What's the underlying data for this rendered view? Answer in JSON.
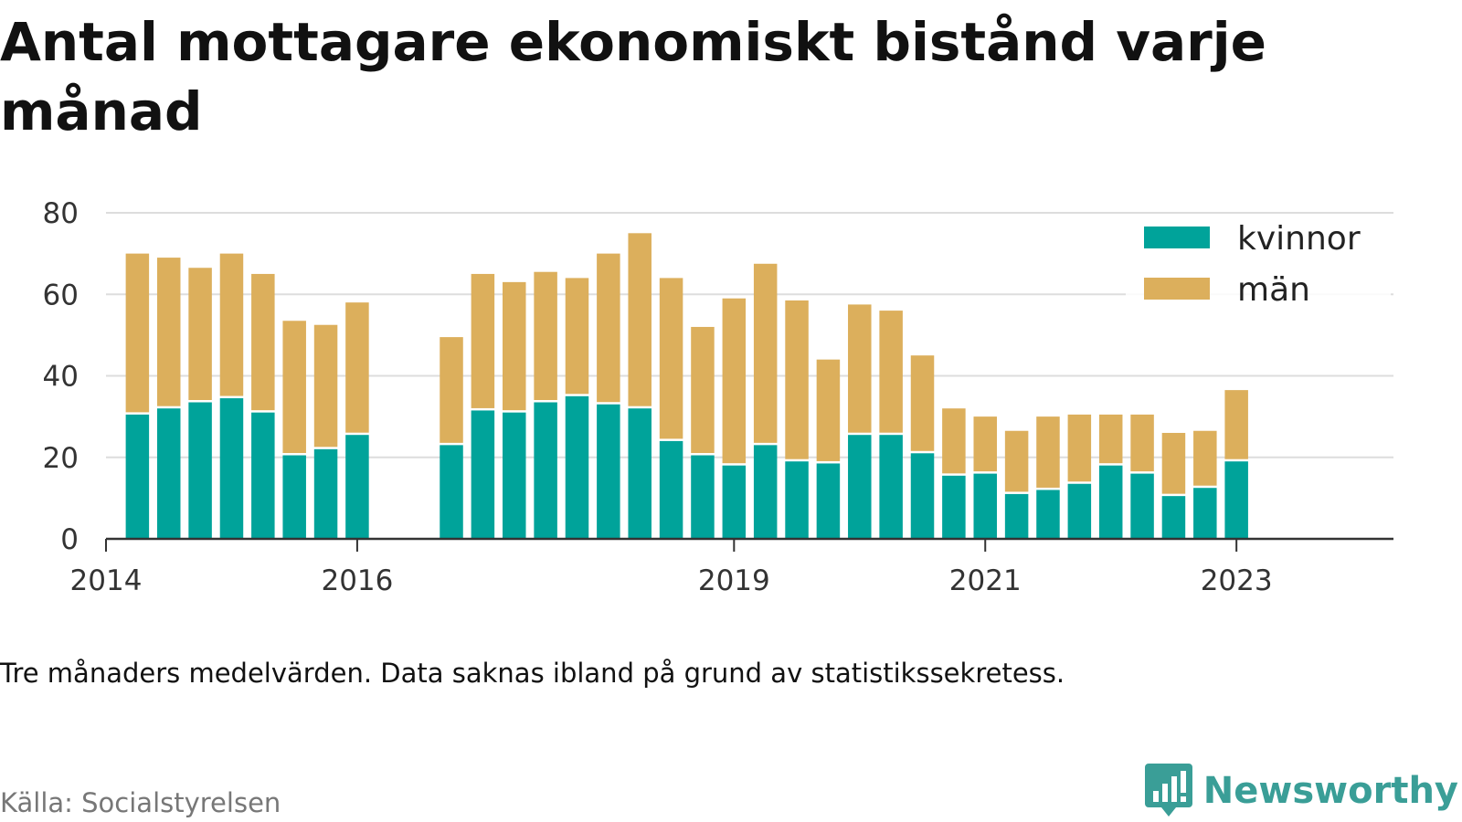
{
  "title": "Antal mottagare ekonomiskt bistånd varje månad",
  "note": "Tre månaders medelvärden. Data saknas ibland på grund av statistikssekretess.",
  "source": "Källa: Socialstyrelsen",
  "brand": {
    "name": "Newsworthy",
    "color": "#3a9e97"
  },
  "chart_data": {
    "type": "bar",
    "stacked": true,
    "ylim": [
      0,
      80
    ],
    "yticks": [
      0,
      20,
      40,
      60,
      80
    ],
    "xlim": [
      2014,
      2024.25
    ],
    "xticks": [
      2014,
      2016,
      2019,
      2021,
      2023
    ],
    "grid": true,
    "legend_position": "top-right",
    "x": [
      2014.25,
      2014.5,
      2014.75,
      2015.0,
      2015.25,
      2015.5,
      2015.75,
      2016.0,
      2016.75,
      2017.0,
      2017.25,
      2017.5,
      2017.75,
      2018.0,
      2018.25,
      2018.5,
      2018.75,
      2019.0,
      2019.25,
      2019.5,
      2019.75,
      2020.0,
      2020.25,
      2020.5,
      2020.75,
      2021.0,
      2021.25,
      2021.5,
      2021.75,
      2022.0,
      2022.25,
      2022.5,
      2022.75,
      2023.0
    ],
    "series": [
      {
        "name": "kvinnor",
        "color": "#00a39a",
        "values": [
          30.5,
          32,
          33.5,
          34.5,
          31,
          20.5,
          22,
          25.5,
          23,
          31.5,
          31,
          33.5,
          35,
          33,
          32,
          24,
          20.5,
          18,
          23,
          19,
          18.5,
          25.5,
          25.5,
          21,
          15.5,
          16,
          11,
          12,
          13.5,
          18,
          16,
          10.5,
          12.5,
          19
        ]
      },
      {
        "name": "män",
        "color": "#dcaf5c",
        "values": [
          39.5,
          37,
          33,
          35.5,
          34,
          33,
          30.5,
          32.5,
          26.5,
          33.5,
          32,
          32,
          29,
          37,
          43,
          40,
          31.5,
          41,
          44.5,
          39.5,
          25.5,
          32,
          30.5,
          24,
          16.5,
          14,
          15.5,
          18,
          17,
          12.5,
          14.5,
          15.5,
          14,
          17.5
        ]
      }
    ]
  }
}
